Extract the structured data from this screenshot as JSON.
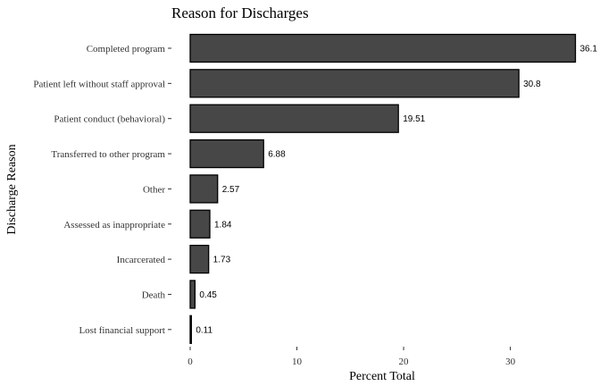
{
  "chart_data": {
    "type": "bar",
    "orientation": "horizontal",
    "title": "Reason for Discharges",
    "xlabel": "Percent Total",
    "ylabel": "Discharge Reason",
    "categories": [
      "Completed program",
      "Patient left without staff approval",
      "Patient conduct (behavioral)",
      "Transferred to other program",
      "Other",
      "Assessed as inappropriate",
      "Incarcerated",
      "Death",
      "Lost financial support"
    ],
    "values": [
      36.1,
      30.8,
      19.51,
      6.88,
      2.57,
      1.84,
      1.73,
      0.45,
      0.11
    ],
    "value_labels": [
      "36.1",
      "30.8",
      "19.51",
      "6.88",
      "2.57",
      "1.84",
      "1.73",
      "0.45",
      "0.11"
    ],
    "xticks": [
      0,
      10,
      20,
      30
    ],
    "xlim": [
      0,
      37.9
    ],
    "grid": false,
    "bar_color": "#474747",
    "bar_edge_color": "#000000"
  }
}
